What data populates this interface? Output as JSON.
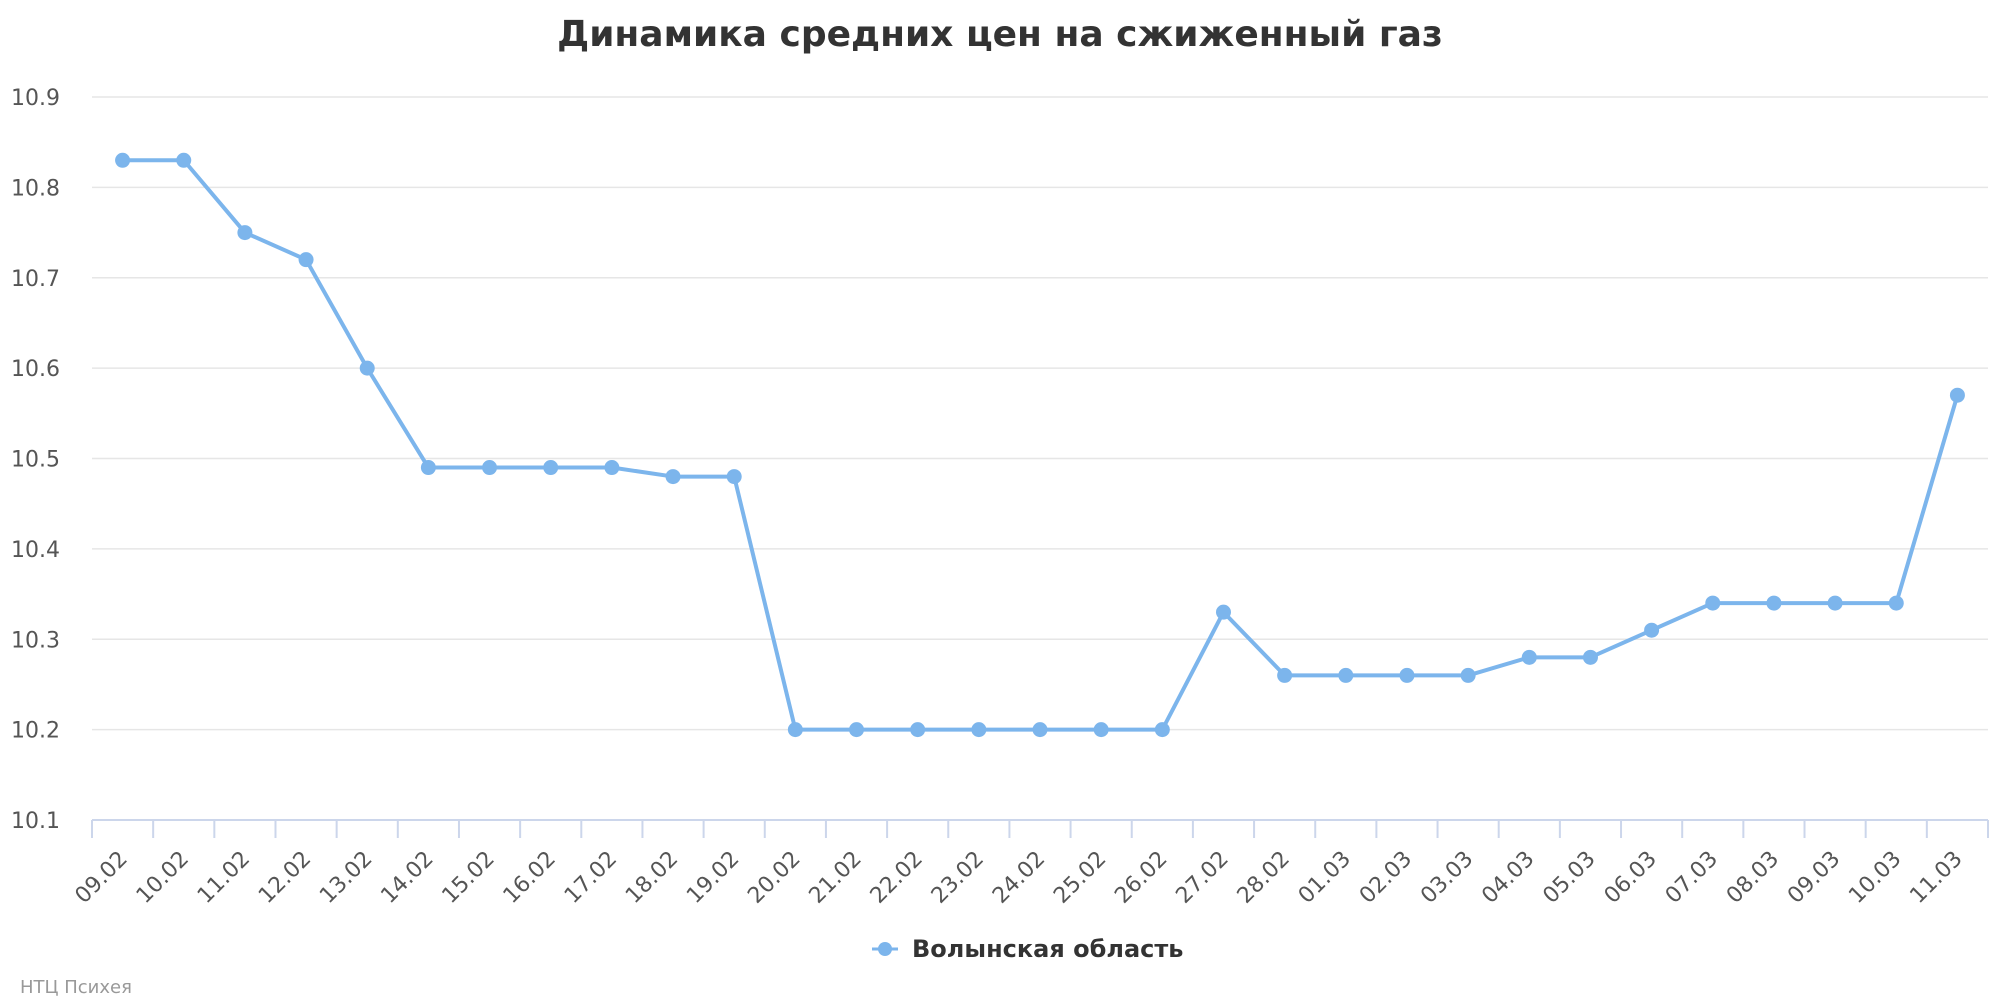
{
  "chart_data": {
    "type": "line",
    "title": "Динамика средних цен на сжиженный газ",
    "xlabel": "",
    "ylabel": "",
    "categories": [
      "09.02",
      "10.02",
      "11.02",
      "12.02",
      "13.02",
      "14.02",
      "15.02",
      "16.02",
      "17.02",
      "18.02",
      "19.02",
      "20.02",
      "21.02",
      "22.02",
      "23.02",
      "24.02",
      "25.02",
      "26.02",
      "27.02",
      "28.02",
      "01.03",
      "02.03",
      "03.03",
      "04.03",
      "05.03",
      "06.03",
      "07.03",
      "08.03",
      "09.03",
      "10.03",
      "11.03"
    ],
    "series": [
      {
        "name": "Волынская область",
        "color": "#7cb5ec",
        "values": [
          10.83,
          10.83,
          10.75,
          10.72,
          10.6,
          10.49,
          10.49,
          10.49,
          10.49,
          10.48,
          10.48,
          10.2,
          10.2,
          10.2,
          10.2,
          10.2,
          10.2,
          10.2,
          10.33,
          10.26,
          10.26,
          10.26,
          10.26,
          10.28,
          10.28,
          10.31,
          10.34,
          10.34,
          10.34,
          10.34,
          10.57
        ]
      }
    ],
    "ylim": [
      10.1,
      10.9
    ],
    "yticks": [
      "10.1",
      "10.2",
      "10.3",
      "10.4",
      "10.5",
      "10.6",
      "10.7",
      "10.8",
      "10.9"
    ],
    "grid": true,
    "legend_position": "bottom-center"
  },
  "credit": "НТЦ Психея",
  "colors": {
    "grid": "#e6e6e6",
    "axis": "#ccd6eb",
    "series": "#7cb5ec"
  }
}
